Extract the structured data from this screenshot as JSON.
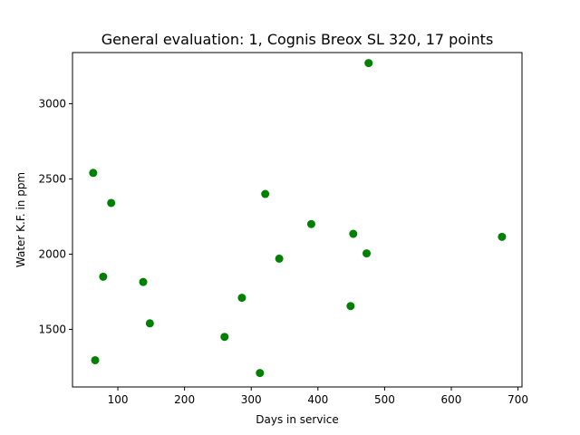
{
  "chart_data": {
    "type": "scatter",
    "title": "General evaluation: 1, Cognis Breox SL 320, 17 points",
    "xlabel": "Days in service",
    "ylabel": "Water K.F. in ppm",
    "xlim": [
      32,
      706
    ],
    "ylim": [
      1117,
      3340
    ],
    "xticks": [
      100,
      200,
      300,
      400,
      500,
      600,
      700
    ],
    "yticks": [
      1500,
      2000,
      2500,
      3000
    ],
    "grid": false,
    "marker_color": "#008000",
    "points": [
      {
        "x": 63,
        "y": 2540
      },
      {
        "x": 66,
        "y": 1295
      },
      {
        "x": 78,
        "y": 1850
      },
      {
        "x": 90,
        "y": 2340
      },
      {
        "x": 138,
        "y": 1815
      },
      {
        "x": 148,
        "y": 1540
      },
      {
        "x": 260,
        "y": 1450
      },
      {
        "x": 286,
        "y": 1710
      },
      {
        "x": 313,
        "y": 1210
      },
      {
        "x": 321,
        "y": 2400
      },
      {
        "x": 342,
        "y": 1970
      },
      {
        "x": 390,
        "y": 2200
      },
      {
        "x": 449,
        "y": 1655
      },
      {
        "x": 453,
        "y": 2135
      },
      {
        "x": 473,
        "y": 2005
      },
      {
        "x": 476,
        "y": 3270
      },
      {
        "x": 676,
        "y": 2115
      }
    ]
  }
}
